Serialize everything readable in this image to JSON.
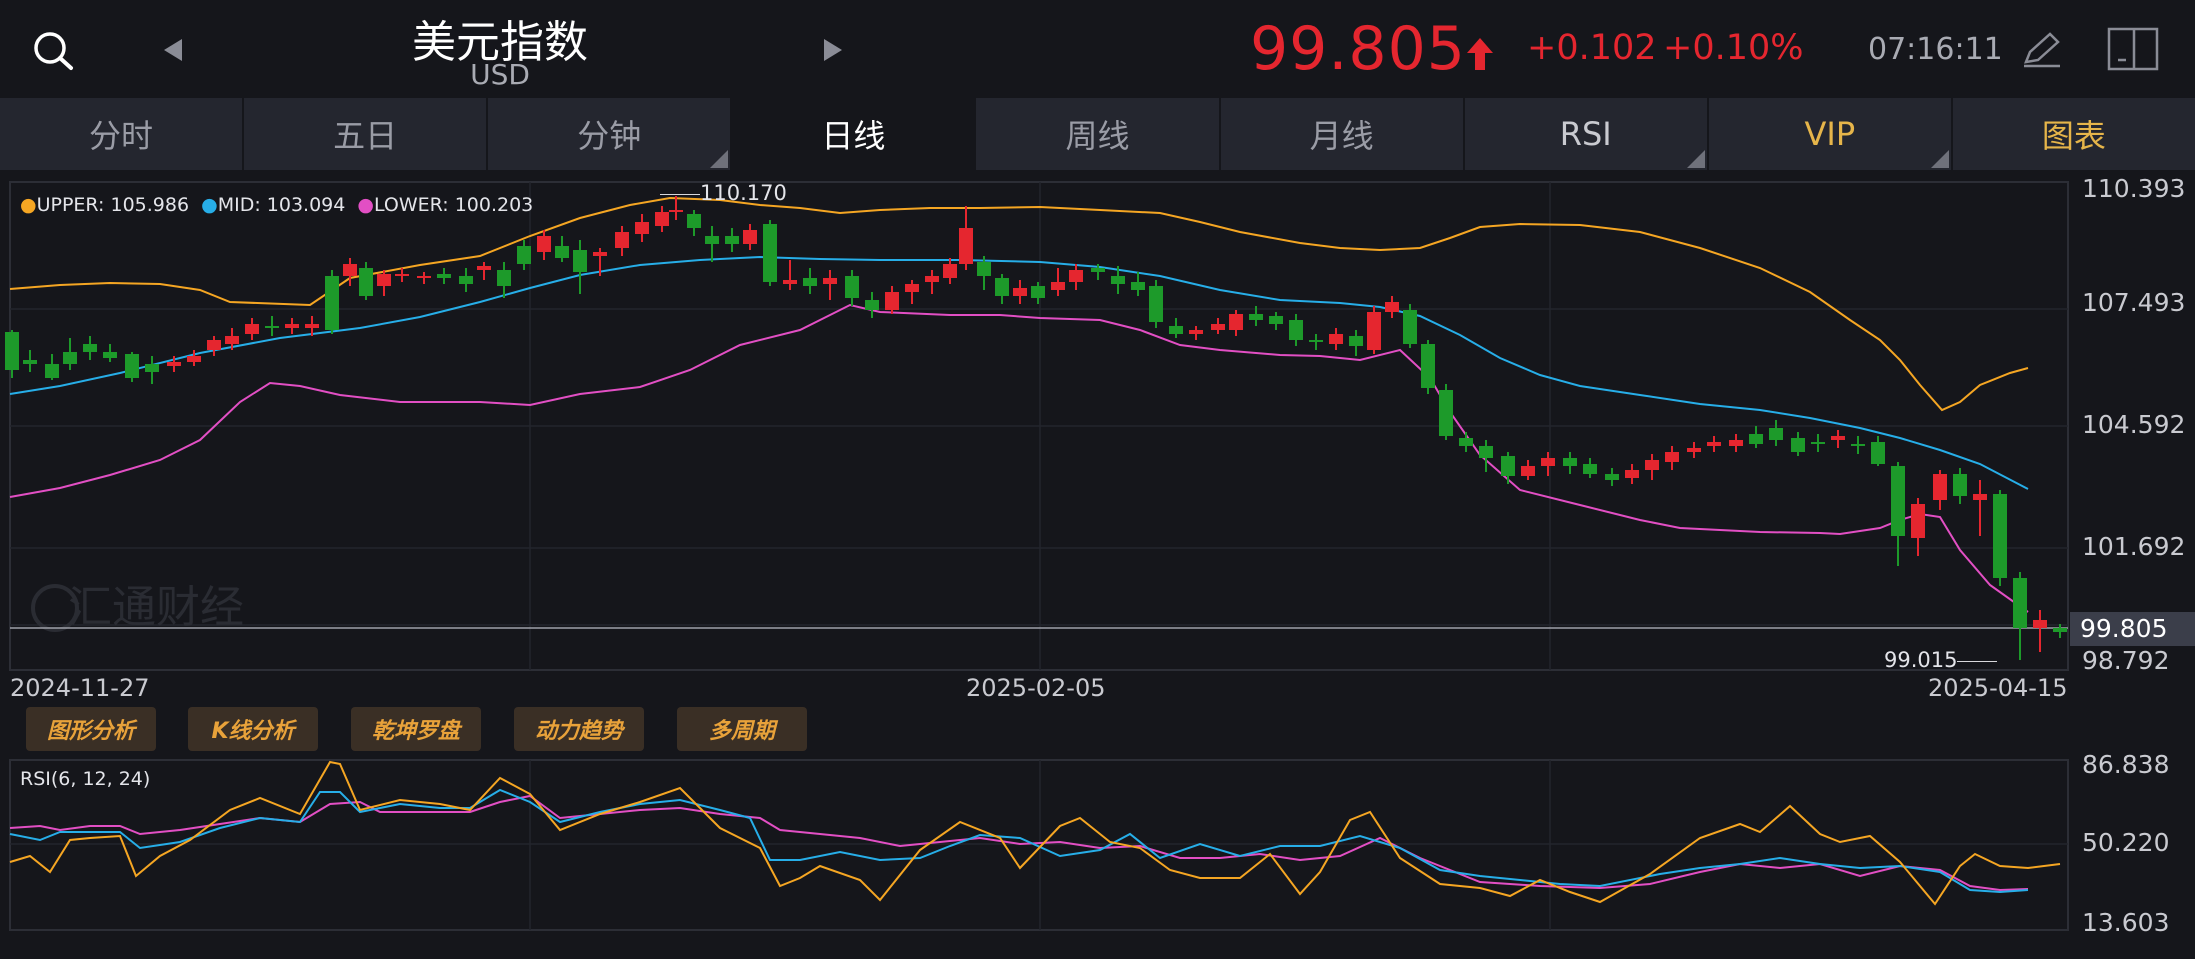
{
  "header": {
    "title": "美元指数",
    "subtitle": "USD",
    "price": "99.805",
    "change": "+0.102",
    "change_pct": "+0.10%",
    "time": "07:16:11",
    "icons": [
      "search-icon",
      "prev-arrow-icon",
      "next-arrow-icon",
      "up-arrow-icon",
      "pen-icon",
      "layout-icon"
    ]
  },
  "colors": {
    "up": "#e5262f",
    "down": "#1d9a2a",
    "upper": "#f5a623",
    "mid": "#27aee8",
    "lower": "#e24fc4",
    "gold": "#e6b54a"
  },
  "tabs": [
    {
      "label": "分时"
    },
    {
      "label": "五日"
    },
    {
      "label": "分钟"
    },
    {
      "label": "日线"
    },
    {
      "label": "周线"
    },
    {
      "label": "月线"
    },
    {
      "label": "RSI"
    },
    {
      "label": "VIP"
    },
    {
      "label": "图表"
    }
  ],
  "main_chart": {
    "legend": {
      "upper": "UPPER: 105.986",
      "mid": "MID: 103.094",
      "lower": "LOWER: 100.203"
    },
    "y_ticks": [
      "110.393",
      "107.493",
      "104.592",
      "101.692",
      "98.792"
    ],
    "current_price_label": "99.805",
    "high_label": "110.170",
    "low_label": "99.015",
    "x_labels": [
      "2024-11-27",
      "2025-02-05",
      "2025-04-15"
    ],
    "watermark": "汇通财经"
  },
  "tools": [
    "图形分析",
    "K线分析",
    "乾坤罗盘",
    "动力趋势",
    "多周期"
  ],
  "rsi": {
    "legend": "RSI(6, 12, 24)",
    "y_ticks": [
      "86.838",
      "50.220",
      "13.603"
    ]
  }
}
